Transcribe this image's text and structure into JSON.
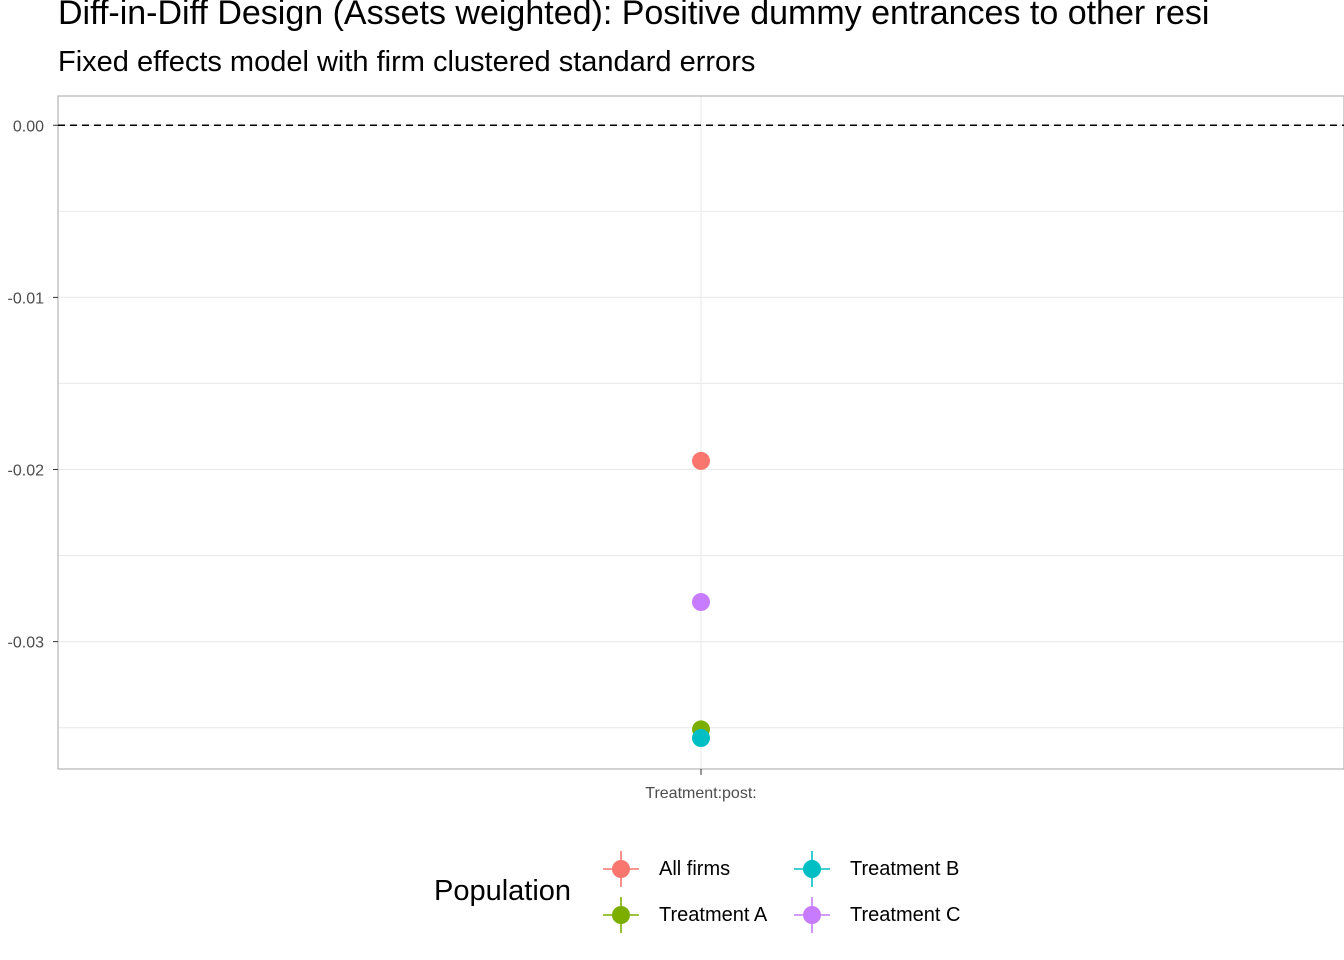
{
  "title": "Diff-in-Diff Design (Assets weighted): Positive dummy entrances to other resi",
  "subtitle": "Fixed effects model with firm clustered standard errors",
  "chart_data": {
    "type": "scatter",
    "categories": [
      "Treatment:post:"
    ],
    "ylim": [
      -0.0374,
      0.0017
    ],
    "yticks": [
      0.0,
      -0.01,
      -0.02,
      -0.03
    ],
    "ytick_labels": [
      "0.00",
      "-0.01",
      "-0.02",
      "-0.03"
    ],
    "reference_line": 0.0,
    "grid": true,
    "legend": {
      "title": "Population",
      "position": "bottom"
    },
    "series": [
      {
        "name": "All firms",
        "color": "#F8766D",
        "values": [
          -0.0195
        ]
      },
      {
        "name": "Treatment A",
        "color": "#7CAE00",
        "values": [
          -0.0351
        ]
      },
      {
        "name": "Treatment B",
        "color": "#00BFC4",
        "values": [
          -0.0356
        ]
      },
      {
        "name": "Treatment C",
        "color": "#C77CFF",
        "values": [
          -0.0277
        ]
      }
    ]
  }
}
